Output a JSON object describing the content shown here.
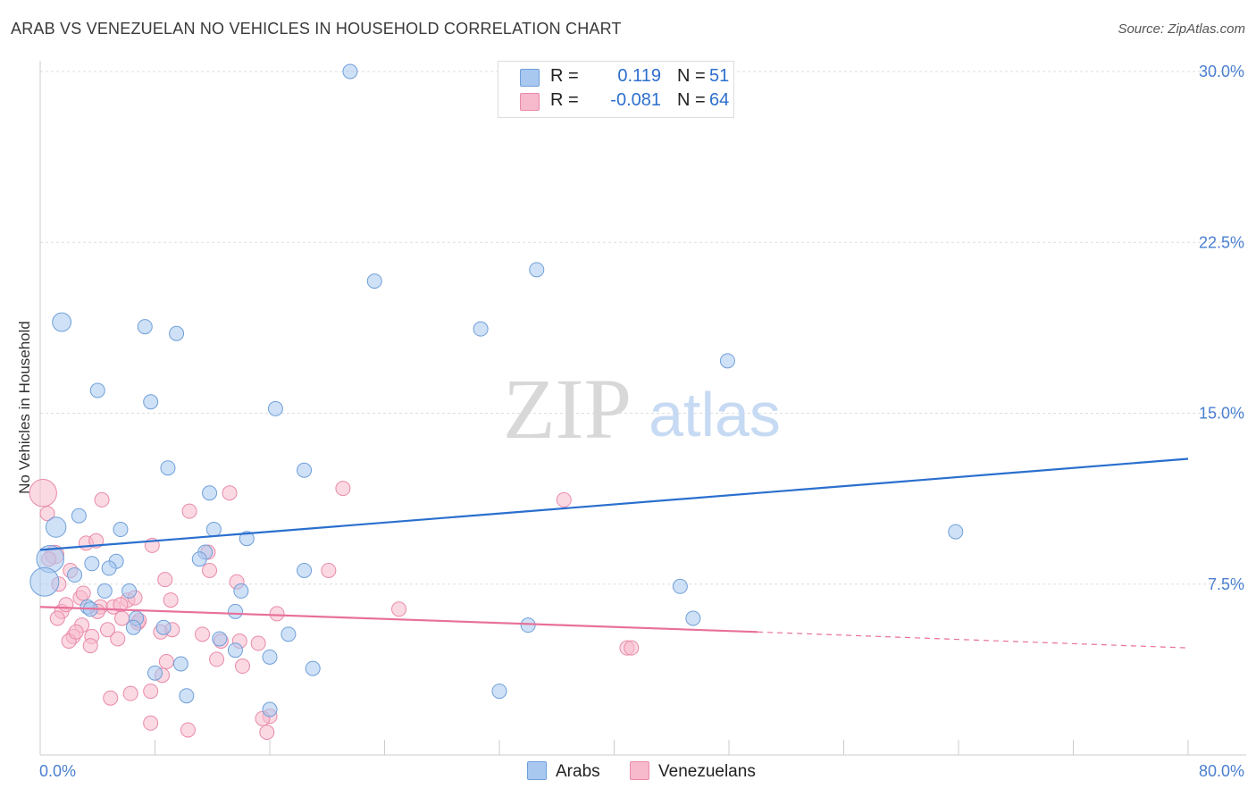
{
  "header": {
    "title": "ARAB VS VENEZUELAN NO VEHICLES IN HOUSEHOLD CORRELATION CHART",
    "source": "Source: ZipAtlas.com"
  },
  "watermark": {
    "zip": "ZIP",
    "atlas": "atlas"
  },
  "legend": {
    "arabs": {
      "r_label": "R =",
      "r_value": "0.119",
      "n_label": "N =",
      "n_value": "51"
    },
    "venezuelans": {
      "r_label": "R =",
      "r_value": "-0.081",
      "n_label": "N =",
      "n_value": "64"
    }
  },
  "colors": {
    "arabs_fill": "#a8c8f0",
    "arabs_stroke": "#6f9fd8",
    "arabs_line": "#2a6fce",
    "venezuelans_fill": "#f7b9cc",
    "venezuelans_stroke": "#e98aa8",
    "venezuelans_line": "#e8709a",
    "tick_label": "#4a7fd0",
    "grid": "#dddddd"
  },
  "chart_data": {
    "type": "scatter",
    "title": "ARAB VS VENEZUELAN NO VEHICLES IN HOUSEHOLD CORRELATION CHART",
    "xlabel": "",
    "ylabel": "No Vehicles in Household",
    "xlim": [
      0,
      80
    ],
    "ylim": [
      0,
      30
    ],
    "x_tick_labels": [
      "0.0%",
      "80.0%"
    ],
    "y_ticks": [
      7.5,
      15.0,
      22.5,
      30.0
    ],
    "y_tick_labels": [
      "7.5%",
      "15.0%",
      "22.5%",
      "30.0%"
    ],
    "grid": "horizontal dashed",
    "legend_position": "top-center",
    "series": [
      {
        "name": "Arabs",
        "r": 0.119,
        "n": 51,
        "trend": {
          "x": [
            0,
            80
          ],
          "y": [
            9.0,
            13.0
          ]
        },
        "points": [
          {
            "x": 21.6,
            "y": 30.0
          },
          {
            "x": 34.6,
            "y": 21.3
          },
          {
            "x": 23.3,
            "y": 20.8
          },
          {
            "x": 1.5,
            "y": 19.0,
            "s": 1.3
          },
          {
            "x": 7.3,
            "y": 18.8
          },
          {
            "x": 9.5,
            "y": 18.5
          },
          {
            "x": 30.7,
            "y": 18.7
          },
          {
            "x": 47.9,
            "y": 17.3
          },
          {
            "x": 4.0,
            "y": 16.0
          },
          {
            "x": 7.7,
            "y": 15.5
          },
          {
            "x": 16.4,
            "y": 15.2
          },
          {
            "x": 8.9,
            "y": 12.6
          },
          {
            "x": 18.4,
            "y": 12.5
          },
          {
            "x": 11.8,
            "y": 11.5
          },
          {
            "x": 2.7,
            "y": 10.5
          },
          {
            "x": 1.1,
            "y": 10.0,
            "s": 1.4
          },
          {
            "x": 5.6,
            "y": 9.9
          },
          {
            "x": 12.1,
            "y": 9.9
          },
          {
            "x": 63.8,
            "y": 9.8
          },
          {
            "x": 14.4,
            "y": 9.5
          },
          {
            "x": 11.5,
            "y": 8.9
          },
          {
            "x": 0.7,
            "y": 8.6,
            "s": 1.9
          },
          {
            "x": 11.1,
            "y": 8.6
          },
          {
            "x": 3.6,
            "y": 8.4
          },
          {
            "x": 5.3,
            "y": 8.5
          },
          {
            "x": 4.8,
            "y": 8.2
          },
          {
            "x": 18.4,
            "y": 8.1
          },
          {
            "x": 2.4,
            "y": 7.9
          },
          {
            "x": 0.3,
            "y": 7.6,
            "s": 2.0
          },
          {
            "x": 44.6,
            "y": 7.4
          },
          {
            "x": 4.5,
            "y": 7.2
          },
          {
            "x": 6.2,
            "y": 7.2
          },
          {
            "x": 14.0,
            "y": 7.2
          },
          {
            "x": 3.3,
            "y": 6.5
          },
          {
            "x": 13.6,
            "y": 6.3
          },
          {
            "x": 45.5,
            "y": 6.0
          },
          {
            "x": 6.7,
            "y": 6.0
          },
          {
            "x": 34.0,
            "y": 5.7
          },
          {
            "x": 8.6,
            "y": 5.6
          },
          {
            "x": 6.5,
            "y": 5.6
          },
          {
            "x": 17.3,
            "y": 5.3
          },
          {
            "x": 12.5,
            "y": 5.1
          },
          {
            "x": 13.6,
            "y": 4.6
          },
          {
            "x": 16.0,
            "y": 4.3
          },
          {
            "x": 9.8,
            "y": 4.0
          },
          {
            "x": 8.0,
            "y": 3.6
          },
          {
            "x": 19.0,
            "y": 3.8
          },
          {
            "x": 10.2,
            "y": 2.6
          },
          {
            "x": 32.0,
            "y": 2.8
          },
          {
            "x": 16.0,
            "y": 2.0
          },
          {
            "x": 3.5,
            "y": 6.4
          }
        ]
      },
      {
        "name": "Venezuelans",
        "r": -0.081,
        "n": 64,
        "trend": {
          "x": [
            0,
            50
          ],
          "y": [
            6.5,
            5.4
          ],
          "dashed_to": {
            "x": 80,
            "y": 4.7
          }
        },
        "points": [
          {
            "x": 0.2,
            "y": 11.5,
            "s": 1.9
          },
          {
            "x": 0.5,
            "y": 10.6
          },
          {
            "x": 21.1,
            "y": 11.7
          },
          {
            "x": 13.2,
            "y": 11.5
          },
          {
            "x": 36.5,
            "y": 11.2
          },
          {
            "x": 4.3,
            "y": 11.2
          },
          {
            "x": 10.4,
            "y": 10.7
          },
          {
            "x": 3.2,
            "y": 9.3
          },
          {
            "x": 3.9,
            "y": 9.4
          },
          {
            "x": 7.8,
            "y": 9.2
          },
          {
            "x": 1.0,
            "y": 8.8,
            "s": 1.3
          },
          {
            "x": 0.6,
            "y": 8.6
          },
          {
            "x": 11.7,
            "y": 8.9
          },
          {
            "x": 2.1,
            "y": 8.1
          },
          {
            "x": 11.8,
            "y": 8.1
          },
          {
            "x": 20.1,
            "y": 8.1
          },
          {
            "x": 1.3,
            "y": 7.5
          },
          {
            "x": 8.7,
            "y": 7.7
          },
          {
            "x": 13.7,
            "y": 7.6
          },
          {
            "x": 9.1,
            "y": 6.8
          },
          {
            "x": 2.8,
            "y": 6.9
          },
          {
            "x": 6.1,
            "y": 6.8
          },
          {
            "x": 4.2,
            "y": 6.5
          },
          {
            "x": 5.1,
            "y": 6.5
          },
          {
            "x": 5.6,
            "y": 6.6
          },
          {
            "x": 25.0,
            "y": 6.4
          },
          {
            "x": 16.5,
            "y": 6.2
          },
          {
            "x": 1.5,
            "y": 6.3
          },
          {
            "x": 1.2,
            "y": 6.0
          },
          {
            "x": 5.7,
            "y": 6.0
          },
          {
            "x": 6.8,
            "y": 5.8
          },
          {
            "x": 2.9,
            "y": 5.7
          },
          {
            "x": 4.7,
            "y": 5.5
          },
          {
            "x": 8.4,
            "y": 5.4
          },
          {
            "x": 11.3,
            "y": 5.3
          },
          {
            "x": 2.3,
            "y": 5.2
          },
          {
            "x": 3.6,
            "y": 5.2
          },
          {
            "x": 5.4,
            "y": 5.1
          },
          {
            "x": 12.6,
            "y": 5.0
          },
          {
            "x": 13.9,
            "y": 5.0
          },
          {
            "x": 2.0,
            "y": 5.0
          },
          {
            "x": 3.5,
            "y": 4.8
          },
          {
            "x": 40.9,
            "y": 4.7
          },
          {
            "x": 41.2,
            "y": 4.7
          },
          {
            "x": 12.3,
            "y": 4.2
          },
          {
            "x": 8.8,
            "y": 4.1
          },
          {
            "x": 14.1,
            "y": 3.9
          },
          {
            "x": 8.5,
            "y": 3.5
          },
          {
            "x": 7.7,
            "y": 2.8
          },
          {
            "x": 6.3,
            "y": 2.7
          },
          {
            "x": 4.9,
            "y": 2.5
          },
          {
            "x": 16.0,
            "y": 1.7
          },
          {
            "x": 15.5,
            "y": 1.6
          },
          {
            "x": 7.7,
            "y": 1.4
          },
          {
            "x": 10.3,
            "y": 1.1
          },
          {
            "x": 15.8,
            "y": 1.0
          },
          {
            "x": 6.6,
            "y": 6.9
          },
          {
            "x": 2.5,
            "y": 5.4
          },
          {
            "x": 3.0,
            "y": 7.1
          },
          {
            "x": 6.9,
            "y": 5.9
          },
          {
            "x": 15.2,
            "y": 4.9
          },
          {
            "x": 9.2,
            "y": 5.5
          },
          {
            "x": 4.0,
            "y": 6.3
          },
          {
            "x": 1.8,
            "y": 6.6
          }
        ]
      }
    ]
  },
  "bottom_legend": {
    "arabs": "Arabs",
    "venezuelans": "Venezuelans"
  }
}
